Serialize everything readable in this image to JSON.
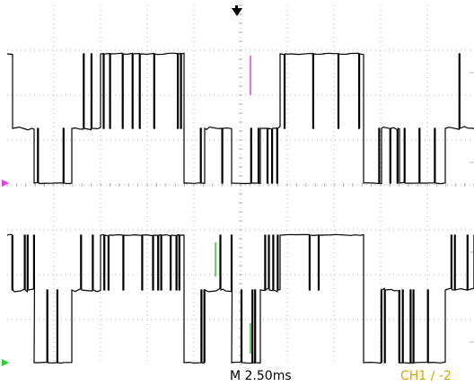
{
  "colors": {
    "background": "#ffffff",
    "grid": "#b4b4b4",
    "trace": "#000000",
    "ch1_marker": "#e040e0",
    "ch2_marker": "#2ecc2e",
    "trigger_text": "#d9a400"
  },
  "icons": {
    "trigger_position": "down-arrow-icon",
    "ch1_ground": "right-arrow-icon",
    "ch2_ground": "right-arrow-icon"
  },
  "grid": {
    "divisions_x": 10,
    "divisions_y": 8,
    "subdivisions": 5
  },
  "status": {
    "timebase": "M 2.50ms",
    "trigger": "CH1 ∕ -2"
  }
}
